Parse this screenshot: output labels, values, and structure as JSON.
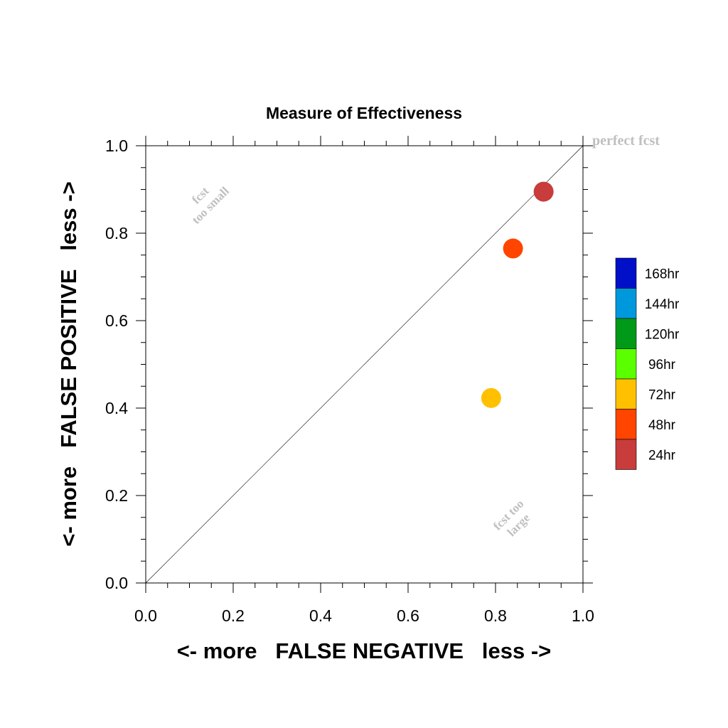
{
  "chart_data": {
    "type": "scatter",
    "title": "Measure of Effectiveness",
    "xlabel": "<- more   FALSE NEGATIVE   less ->",
    "ylabel": "<- more   FALSE POSITIVE   less ->",
    "xlim": [
      0,
      1
    ],
    "ylim": [
      0,
      1
    ],
    "x_ticks": [
      "0.0",
      "0.2",
      "0.4",
      "0.6",
      "0.8",
      "1.0"
    ],
    "y_ticks": [
      "0.0",
      "0.2",
      "0.4",
      "0.6",
      "0.8",
      "1.0"
    ],
    "reference_line": {
      "from": [
        0,
        0
      ],
      "to": [
        1,
        1
      ],
      "label": "perfect fcst"
    },
    "annotations": {
      "upper_left": [
        "fcst",
        "too small"
      ],
      "lower_right": [
        "fcst too",
        "large"
      ]
    },
    "points": [
      {
        "lead": "24hr",
        "x": 0.91,
        "y": 0.895,
        "color": "#c83c3c"
      },
      {
        "lead": "48hr",
        "x": 0.84,
        "y": 0.765,
        "color": "#ff4500"
      },
      {
        "lead": "72hr",
        "x": 0.79,
        "y": 0.423,
        "color": "#ffc000"
      }
    ],
    "legend": [
      {
        "label": "168hr",
        "color": "#0010c8"
      },
      {
        "label": "144hr",
        "color": "#0098dc"
      },
      {
        "label": "120hr",
        "color": "#009a18"
      },
      {
        "label": "96hr",
        "color": "#5aff00"
      },
      {
        "label": "72hr",
        "color": "#ffc000"
      },
      {
        "label": "48hr",
        "color": "#ff4500"
      },
      {
        "label": "24hr",
        "color": "#c83c3c"
      }
    ]
  }
}
